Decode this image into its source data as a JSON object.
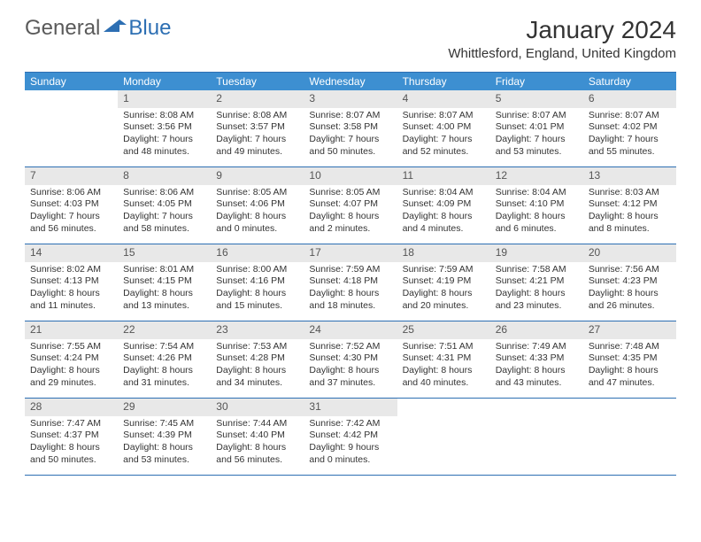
{
  "logo": {
    "general": "General",
    "blue": "Blue"
  },
  "title": "January 2024",
  "location": "Whittlesford, England, United Kingdom",
  "colors": {
    "header_bg": "#3d8fd1",
    "border": "#2d6fb3",
    "daynum_bg": "#e8e8e8",
    "text": "#333333"
  },
  "day_headers": [
    "Sunday",
    "Monday",
    "Tuesday",
    "Wednesday",
    "Thursday",
    "Friday",
    "Saturday"
  ],
  "weeks": [
    [
      {
        "n": "",
        "sr": "",
        "ss": "",
        "dl": ""
      },
      {
        "n": "1",
        "sr": "8:08 AM",
        "ss": "3:56 PM",
        "dl": "7 hours and 48 minutes."
      },
      {
        "n": "2",
        "sr": "8:08 AM",
        "ss": "3:57 PM",
        "dl": "7 hours and 49 minutes."
      },
      {
        "n": "3",
        "sr": "8:07 AM",
        "ss": "3:58 PM",
        "dl": "7 hours and 50 minutes."
      },
      {
        "n": "4",
        "sr": "8:07 AM",
        "ss": "4:00 PM",
        "dl": "7 hours and 52 minutes."
      },
      {
        "n": "5",
        "sr": "8:07 AM",
        "ss": "4:01 PM",
        "dl": "7 hours and 53 minutes."
      },
      {
        "n": "6",
        "sr": "8:07 AM",
        "ss": "4:02 PM",
        "dl": "7 hours and 55 minutes."
      }
    ],
    [
      {
        "n": "7",
        "sr": "8:06 AM",
        "ss": "4:03 PM",
        "dl": "7 hours and 56 minutes."
      },
      {
        "n": "8",
        "sr": "8:06 AM",
        "ss": "4:05 PM",
        "dl": "7 hours and 58 minutes."
      },
      {
        "n": "9",
        "sr": "8:05 AM",
        "ss": "4:06 PM",
        "dl": "8 hours and 0 minutes."
      },
      {
        "n": "10",
        "sr": "8:05 AM",
        "ss": "4:07 PM",
        "dl": "8 hours and 2 minutes."
      },
      {
        "n": "11",
        "sr": "8:04 AM",
        "ss": "4:09 PM",
        "dl": "8 hours and 4 minutes."
      },
      {
        "n": "12",
        "sr": "8:04 AM",
        "ss": "4:10 PM",
        "dl": "8 hours and 6 minutes."
      },
      {
        "n": "13",
        "sr": "8:03 AM",
        "ss": "4:12 PM",
        "dl": "8 hours and 8 minutes."
      }
    ],
    [
      {
        "n": "14",
        "sr": "8:02 AM",
        "ss": "4:13 PM",
        "dl": "8 hours and 11 minutes."
      },
      {
        "n": "15",
        "sr": "8:01 AM",
        "ss": "4:15 PM",
        "dl": "8 hours and 13 minutes."
      },
      {
        "n": "16",
        "sr": "8:00 AM",
        "ss": "4:16 PM",
        "dl": "8 hours and 15 minutes."
      },
      {
        "n": "17",
        "sr": "7:59 AM",
        "ss": "4:18 PM",
        "dl": "8 hours and 18 minutes."
      },
      {
        "n": "18",
        "sr": "7:59 AM",
        "ss": "4:19 PM",
        "dl": "8 hours and 20 minutes."
      },
      {
        "n": "19",
        "sr": "7:58 AM",
        "ss": "4:21 PM",
        "dl": "8 hours and 23 minutes."
      },
      {
        "n": "20",
        "sr": "7:56 AM",
        "ss": "4:23 PM",
        "dl": "8 hours and 26 minutes."
      }
    ],
    [
      {
        "n": "21",
        "sr": "7:55 AM",
        "ss": "4:24 PM",
        "dl": "8 hours and 29 minutes."
      },
      {
        "n": "22",
        "sr": "7:54 AM",
        "ss": "4:26 PM",
        "dl": "8 hours and 31 minutes."
      },
      {
        "n": "23",
        "sr": "7:53 AM",
        "ss": "4:28 PM",
        "dl": "8 hours and 34 minutes."
      },
      {
        "n": "24",
        "sr": "7:52 AM",
        "ss": "4:30 PM",
        "dl": "8 hours and 37 minutes."
      },
      {
        "n": "25",
        "sr": "7:51 AM",
        "ss": "4:31 PM",
        "dl": "8 hours and 40 minutes."
      },
      {
        "n": "26",
        "sr": "7:49 AM",
        "ss": "4:33 PM",
        "dl": "8 hours and 43 minutes."
      },
      {
        "n": "27",
        "sr": "7:48 AM",
        "ss": "4:35 PM",
        "dl": "8 hours and 47 minutes."
      }
    ],
    [
      {
        "n": "28",
        "sr": "7:47 AM",
        "ss": "4:37 PM",
        "dl": "8 hours and 50 minutes."
      },
      {
        "n": "29",
        "sr": "7:45 AM",
        "ss": "4:39 PM",
        "dl": "8 hours and 53 minutes."
      },
      {
        "n": "30",
        "sr": "7:44 AM",
        "ss": "4:40 PM",
        "dl": "8 hours and 56 minutes."
      },
      {
        "n": "31",
        "sr": "7:42 AM",
        "ss": "4:42 PM",
        "dl": "9 hours and 0 minutes."
      },
      {
        "n": "",
        "sr": "",
        "ss": "",
        "dl": ""
      },
      {
        "n": "",
        "sr": "",
        "ss": "",
        "dl": ""
      },
      {
        "n": "",
        "sr": "",
        "ss": "",
        "dl": ""
      }
    ]
  ],
  "labels": {
    "sunrise": "Sunrise:",
    "sunset": "Sunset:",
    "daylight": "Daylight:"
  }
}
